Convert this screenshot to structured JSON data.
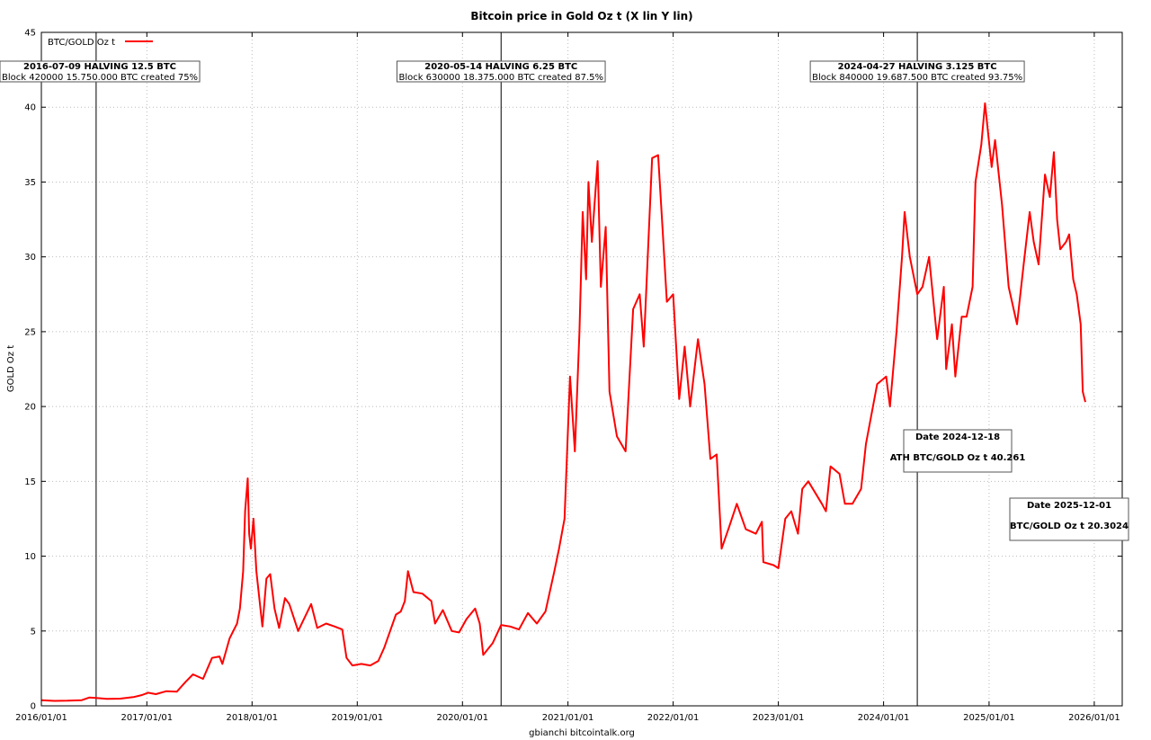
{
  "chart_data": {
    "type": "line",
    "title": "Bitcoin price in Gold Oz t (X lin Y lin)",
    "xlabel": "gbianchi bitcointalk.org",
    "ylabel": "GOLD Oz t",
    "ylim": [
      0,
      45
    ],
    "xlim": [
      "2016-01-01",
      "2026-04-08"
    ],
    "grid": true,
    "legend": {
      "position": "top-left",
      "entries": [
        "BTC/GOLD Oz t"
      ]
    },
    "line_color": "#ff0000",
    "yticks": [
      "0",
      "5",
      "10",
      "15",
      "20",
      "25",
      "30",
      "35",
      "40",
      "45"
    ],
    "xticks": [
      "2016/01/01",
      "2017/01/01",
      "2018/01/01",
      "2019/01/01",
      "2020/01/01",
      "2021/01/01",
      "2022/01/01",
      "2023/01/01",
      "2024/01/01",
      "2025/01/01",
      "2026/01/01"
    ],
    "series": [
      {
        "name": "BTC/GOLD Oz t",
        "points": [
          [
            "2016-01-01",
            0.38
          ],
          [
            "2016-02-15",
            0.33
          ],
          [
            "2016-04-01",
            0.34
          ],
          [
            "2016-05-20",
            0.38
          ],
          [
            "2016-06-15",
            0.55
          ],
          [
            "2016-07-09",
            0.52
          ],
          [
            "2016-08-15",
            0.46
          ],
          [
            "2016-10-01",
            0.48
          ],
          [
            "2016-11-15",
            0.58
          ],
          [
            "2016-12-15",
            0.72
          ],
          [
            "2017-01-05",
            0.88
          ],
          [
            "2017-02-01",
            0.78
          ],
          [
            "2017-03-10",
            0.98
          ],
          [
            "2017-04-15",
            0.95
          ],
          [
            "2017-05-15",
            1.6
          ],
          [
            "2017-06-10",
            2.1
          ],
          [
            "2017-07-15",
            1.8
          ],
          [
            "2017-08-15",
            3.2
          ],
          [
            "2017-09-10",
            3.3
          ],
          [
            "2017-09-20",
            2.8
          ],
          [
            "2017-10-15",
            4.5
          ],
          [
            "2017-11-10",
            5.5
          ],
          [
            "2017-11-20",
            6.5
          ],
          [
            "2017-12-01",
            9.0
          ],
          [
            "2017-12-08",
            13.0
          ],
          [
            "2017-12-17",
            15.2
          ],
          [
            "2017-12-22",
            11.5
          ],
          [
            "2017-12-28",
            10.5
          ],
          [
            "2018-01-06",
            12.5
          ],
          [
            "2018-01-16",
            9.0
          ],
          [
            "2018-02-06",
            5.3
          ],
          [
            "2018-02-20",
            8.5
          ],
          [
            "2018-03-05",
            8.8
          ],
          [
            "2018-03-20",
            6.5
          ],
          [
            "2018-04-05",
            5.2
          ],
          [
            "2018-04-25",
            7.2
          ],
          [
            "2018-05-10",
            6.8
          ],
          [
            "2018-06-10",
            5.0
          ],
          [
            "2018-07-25",
            6.8
          ],
          [
            "2018-08-15",
            5.2
          ],
          [
            "2018-09-15",
            5.5
          ],
          [
            "2018-10-15",
            5.3
          ],
          [
            "2018-11-10",
            5.1
          ],
          [
            "2018-11-25",
            3.2
          ],
          [
            "2018-12-15",
            2.7
          ],
          [
            "2019-01-15",
            2.8
          ],
          [
            "2019-02-15",
            2.7
          ],
          [
            "2019-03-15",
            3.0
          ],
          [
            "2019-04-05",
            3.9
          ],
          [
            "2019-05-15",
            6.1
          ],
          [
            "2019-06-01",
            6.3
          ],
          [
            "2019-06-15",
            7.0
          ],
          [
            "2019-06-26",
            9.0
          ],
          [
            "2019-07-15",
            7.6
          ],
          [
            "2019-08-15",
            7.5
          ],
          [
            "2019-09-15",
            7.0
          ],
          [
            "2019-09-28",
            5.5
          ],
          [
            "2019-10-25",
            6.4
          ],
          [
            "2019-11-25",
            5.0
          ],
          [
            "2019-12-20",
            4.9
          ],
          [
            "2020-01-15",
            5.8
          ],
          [
            "2020-02-14",
            6.5
          ],
          [
            "2020-03-01",
            5.5
          ],
          [
            "2020-03-13",
            3.4
          ],
          [
            "2020-04-15",
            4.2
          ],
          [
            "2020-05-14",
            5.4
          ],
          [
            "2020-06-15",
            5.3
          ],
          [
            "2020-07-15",
            5.1
          ],
          [
            "2020-08-15",
            6.2
          ],
          [
            "2020-09-15",
            5.5
          ],
          [
            "2020-10-15",
            6.3
          ],
          [
            "2020-11-15",
            9.0
          ],
          [
            "2020-12-01",
            10.5
          ],
          [
            "2020-12-20",
            12.5
          ],
          [
            "2021-01-08",
            22.0
          ],
          [
            "2021-01-25",
            17.0
          ],
          [
            "2021-02-10",
            25.0
          ],
          [
            "2021-02-21",
            33.0
          ],
          [
            "2021-03-05",
            28.5
          ],
          [
            "2021-03-13",
            35.0
          ],
          [
            "2021-03-25",
            31.0
          ],
          [
            "2021-04-14",
            36.4
          ],
          [
            "2021-04-25",
            28.0
          ],
          [
            "2021-05-12",
            32.0
          ],
          [
            "2021-05-25",
            21.0
          ],
          [
            "2021-06-20",
            18.0
          ],
          [
            "2021-07-20",
            17.0
          ],
          [
            "2021-08-15",
            26.5
          ],
          [
            "2021-09-07",
            27.5
          ],
          [
            "2021-09-21",
            24.0
          ],
          [
            "2021-10-20",
            36.6
          ],
          [
            "2021-11-10",
            36.8
          ],
          [
            "2021-11-25",
            32.0
          ],
          [
            "2021-12-10",
            27.0
          ],
          [
            "2022-01-01",
            27.5
          ],
          [
            "2022-01-22",
            20.5
          ],
          [
            "2022-02-10",
            24.0
          ],
          [
            "2022-03-01",
            20.0
          ],
          [
            "2022-03-28",
            24.5
          ],
          [
            "2022-04-20",
            21.5
          ],
          [
            "2022-05-10",
            16.5
          ],
          [
            "2022-06-01",
            16.8
          ],
          [
            "2022-06-18",
            10.5
          ],
          [
            "2022-07-15",
            12.0
          ],
          [
            "2022-08-10",
            13.5
          ],
          [
            "2022-09-10",
            11.8
          ],
          [
            "2022-10-15",
            11.5
          ],
          [
            "2022-11-05",
            12.3
          ],
          [
            "2022-11-10",
            9.6
          ],
          [
            "2022-12-15",
            9.4
          ],
          [
            "2023-01-01",
            9.2
          ],
          [
            "2023-01-25",
            12.5
          ],
          [
            "2023-02-15",
            13.0
          ],
          [
            "2023-03-10",
            11.5
          ],
          [
            "2023-03-25",
            14.5
          ],
          [
            "2023-04-15",
            15.0
          ],
          [
            "2023-06-01",
            13.5
          ],
          [
            "2023-06-15",
            13.0
          ],
          [
            "2023-07-01",
            16.0
          ],
          [
            "2023-08-01",
            15.5
          ],
          [
            "2023-08-20",
            13.5
          ],
          [
            "2023-09-15",
            13.5
          ],
          [
            "2023-10-15",
            14.5
          ],
          [
            "2023-11-01",
            17.5
          ],
          [
            "2023-12-10",
            21.5
          ],
          [
            "2024-01-10",
            22.0
          ],
          [
            "2024-01-23",
            20.0
          ],
          [
            "2024-02-15",
            25.0
          ],
          [
            "2024-03-05",
            30.0
          ],
          [
            "2024-03-14",
            33.0
          ],
          [
            "2024-04-01",
            30.0
          ],
          [
            "2024-04-27",
            27.5
          ],
          [
            "2024-05-15",
            28.0
          ],
          [
            "2024-06-07",
            30.0
          ],
          [
            "2024-07-05",
            24.5
          ],
          [
            "2024-07-28",
            28.0
          ],
          [
            "2024-08-05",
            22.5
          ],
          [
            "2024-08-25",
            25.5
          ],
          [
            "2024-09-06",
            22.0
          ],
          [
            "2024-09-28",
            26.0
          ],
          [
            "2024-10-15",
            26.0
          ],
          [
            "2024-11-05",
            28.0
          ],
          [
            "2024-11-15",
            35.0
          ],
          [
            "2024-12-05",
            37.5
          ],
          [
            "2024-12-18",
            40.26
          ],
          [
            "2025-01-10",
            36.0
          ],
          [
            "2025-01-22",
            37.8
          ],
          [
            "2025-02-15",
            33.5
          ],
          [
            "2025-03-10",
            28.0
          ],
          [
            "2025-04-08",
            25.5
          ],
          [
            "2025-05-01",
            29.5
          ],
          [
            "2025-05-22",
            33.0
          ],
          [
            "2025-06-05",
            31.0
          ],
          [
            "2025-06-22",
            29.5
          ],
          [
            "2025-07-14",
            35.5
          ],
          [
            "2025-07-31",
            34.0
          ],
          [
            "2025-08-14",
            37.0
          ],
          [
            "2025-08-25",
            32.5
          ],
          [
            "2025-09-05",
            30.5
          ],
          [
            "2025-09-25",
            31.0
          ],
          [
            "2025-10-06",
            31.5
          ],
          [
            "2025-10-20",
            28.5
          ],
          [
            "2025-11-01",
            27.5
          ],
          [
            "2025-11-15",
            25.5
          ],
          [
            "2025-11-22",
            21.0
          ],
          [
            "2025-12-01",
            20.3
          ]
        ]
      }
    ],
    "halvings": [
      {
        "date": "2016-07-09",
        "title": "2016-07-09 HALVING 12.5 BTC",
        "subtitle": "Block 420000 15.750.000 BTC created 75%"
      },
      {
        "date": "2020-05-14",
        "title": "2020-05-14 HALVING 6.25 BTC",
        "subtitle": "Block 630000 18.375.000 BTC created 87.5%"
      },
      {
        "date": "2024-04-27",
        "title": "2024-04-27 HALVING 3.125 BTC",
        "subtitle": "Block 840000 19.687.500 BTC created 93.75%"
      }
    ],
    "annotations": [
      {
        "line1": "Date 2024-12-18",
        "line2": "ATH BTC/GOLD Oz t 40.261"
      },
      {
        "line1": "Date 2025-12-01",
        "line2": "BTC/GOLD Oz t 20.3024"
      }
    ]
  }
}
